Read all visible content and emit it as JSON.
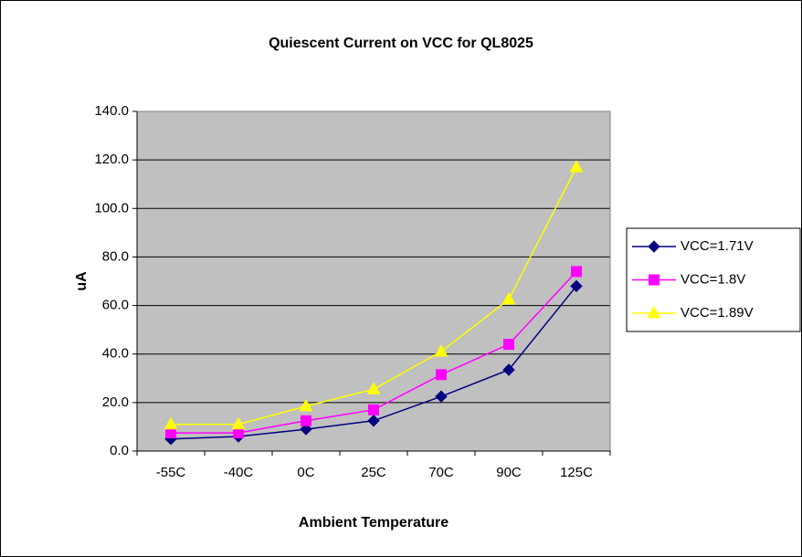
{
  "chart_data": {
    "type": "line",
    "title": "Quiescent Current on VCC for QL8025",
    "x_label": "Ambient Temperature",
    "y_label": "uA",
    "categories": [
      "-55C",
      "-40C",
      "0C",
      "25C",
      "70C",
      "90C",
      "125C"
    ],
    "series": [
      {
        "name": "VCC=1.71V",
        "color": "#000080",
        "marker": "diamond",
        "values": [
          5.0,
          6.0,
          9.0,
          12.5,
          22.5,
          33.5,
          68.0
        ]
      },
      {
        "name": "VCC=1.8V",
        "color": "#FF00FF",
        "marker": "square",
        "values": [
          7.5,
          7.5,
          12.5,
          17.0,
          31.5,
          44.0,
          74.0
        ]
      },
      {
        "name": "VCC=1.89V",
        "color": "#FFFF00",
        "marker": "triangle",
        "values": [
          11.0,
          11.0,
          18.5,
          25.5,
          41.0,
          62.5,
          117.0
        ]
      }
    ],
    "ylim": [
      0,
      140
    ],
    "yticks": [
      {
        "value": 0,
        "label": "0.0"
      },
      {
        "value": 20,
        "label": "20.0"
      },
      {
        "value": 40,
        "label": "40.0"
      },
      {
        "value": 60,
        "label": "60.0"
      },
      {
        "value": 80,
        "label": "80.0"
      },
      {
        "value": 100,
        "label": "100.0"
      },
      {
        "value": 120,
        "label": "120.0"
      },
      {
        "value": 140,
        "label": "140.0"
      }
    ],
    "grid": true,
    "legend": "right"
  }
}
